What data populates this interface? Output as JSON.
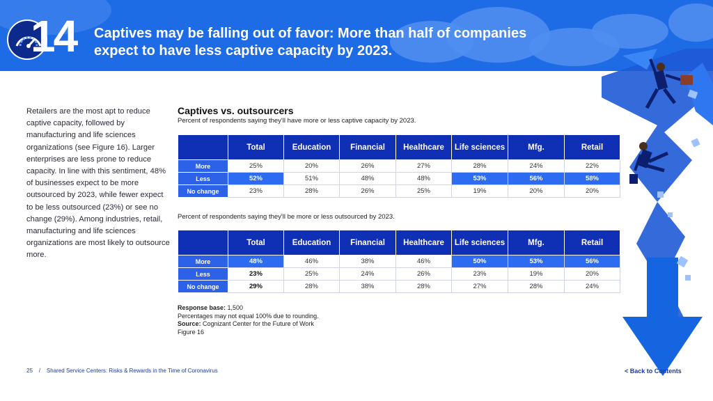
{
  "header": {
    "number": "14",
    "title": "Captives may be falling out of favor: More than half of companies expect to have less captive capacity by 2023.",
    "icon": "speedometer-icon"
  },
  "body_text": "Retailers are the most apt to reduce captive capacity, followed by manufacturing and life sciences organizations (see Figure 16). Larger enterprises are less prone to reduce capacity. In line with this sentiment, 48% of businesses expect to be more outsourced by 2023, while fewer expect to be less outsourced (23%) or see no change (29%). Among industries, retail, manufacturing and life sciences organizations are most likely to outsource more.",
  "figure": {
    "title": "Captives vs. outsourcers",
    "subtitle1": "Percent of respondents saying they'll have more or less captive capacity by 2023.",
    "subtitle2": "Percent of respondents saying they'll be more or less outsourced by 2023.",
    "columns": [
      "Total",
      "Education",
      "Financial",
      "Healthcare",
      "Life sciences",
      "Mfg.",
      "Retail"
    ],
    "table1": [
      {
        "label": "More",
        "values": [
          "25%",
          "20%",
          "26%",
          "27%",
          "28%",
          "24%",
          "22%"
        ]
      },
      {
        "label": "Less",
        "values": [
          "52%",
          "51%",
          "48%",
          "48%",
          "53%",
          "56%",
          "58%"
        ]
      },
      {
        "label": "No change",
        "values": [
          "23%",
          "28%",
          "26%",
          "25%",
          "19%",
          "20%",
          "20%"
        ]
      }
    ],
    "table2": [
      {
        "label": "More",
        "values": [
          "48%",
          "46%",
          "38%",
          "46%",
          "50%",
          "53%",
          "56%"
        ]
      },
      {
        "label": "Less",
        "values": [
          "23%",
          "25%",
          "24%",
          "26%",
          "23%",
          "19%",
          "20%"
        ]
      },
      {
        "label": "No change",
        "values": [
          "29%",
          "28%",
          "38%",
          "28%",
          "27%",
          "28%",
          "24%"
        ]
      }
    ],
    "notes": {
      "response_base_label": "Response base:",
      "response_base_value": " 1,500",
      "rounding": "Percentages may not equal 100% due to rounding.",
      "source_label": "Source:",
      "source_value": " Cognizant Center for the Future of Work",
      "figure_label": "Figure 16"
    }
  },
  "footer": {
    "page": "25",
    "separator": "/",
    "doc_title": "Shared Service Centers: Risks & Rewards in the Time of Coronavirus",
    "back_link": "< Back to Contents"
  },
  "colors": {
    "header_blue": "#1e6be6",
    "table_header": "#0f2fb5",
    "highlight": "#2d6cf0",
    "link": "#1e3aa0"
  }
}
